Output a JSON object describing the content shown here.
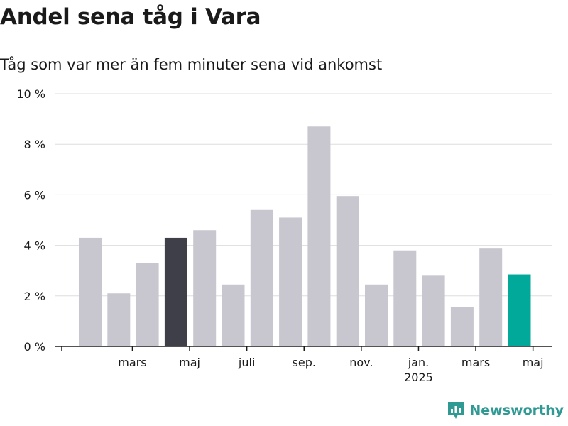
{
  "header": {
    "title": "Andel sena tåg i Vara",
    "subtitle": "Tåg som var mer än fem minuter sena vid ankomst"
  },
  "brand": {
    "name": "Newsworthy"
  },
  "colors": {
    "bar_default": "#c8c7cf",
    "bar_highlight_dark": "#3f3f4a",
    "bar_highlight_teal": "#00a99a",
    "grid": "#dddddd",
    "axis": "#1a1a1a",
    "brand": "#2f9a94"
  },
  "chart_data": {
    "type": "bar",
    "title": "Andel sena tåg i Vara",
    "subtitle": "Tåg som var mer än fem minuter sena vid ankomst",
    "x": [
      "2024-02",
      "2024-03",
      "2024-04",
      "2024-05",
      "2024-06",
      "2024-07",
      "2024-08",
      "2024-09",
      "2024-10",
      "2024-11",
      "2024-12",
      "2025-01",
      "2025-02",
      "2025-03",
      "2025-04",
      "2025-05"
    ],
    "values": [
      4.3,
      2.1,
      3.3,
      4.3,
      4.6,
      2.45,
      5.4,
      5.1,
      8.7,
      5.95,
      2.45,
      3.8,
      2.8,
      1.55,
      3.9,
      2.85
    ],
    "highlight": {
      "dark": [
        "2024-05"
      ],
      "teal": [
        "2025-05"
      ]
    },
    "ylim": [
      0,
      10
    ],
    "yticks": [
      0,
      2,
      4,
      6,
      8,
      10
    ],
    "ytick_labels": [
      "0 %",
      "2 %",
      "4 %",
      "6 %",
      "8 %",
      "10 %"
    ],
    "xtick_labels": [
      {
        "at": "2024-03",
        "label": "mars",
        "sub": ""
      },
      {
        "at": "2024-05",
        "label": "maj",
        "sub": ""
      },
      {
        "at": "2024-07",
        "label": "juli",
        "sub": ""
      },
      {
        "at": "2024-09",
        "label": "sep.",
        "sub": ""
      },
      {
        "at": "2024-11",
        "label": "nov.",
        "sub": ""
      },
      {
        "at": "2025-01",
        "label": "jan.",
        "sub": "2025"
      },
      {
        "at": "2025-03",
        "label": "mars",
        "sub": ""
      },
      {
        "at": "2025-05",
        "label": "maj",
        "sub": ""
      }
    ],
    "xlabel": "",
    "ylabel": "",
    "grid": true,
    "legend": "none"
  }
}
